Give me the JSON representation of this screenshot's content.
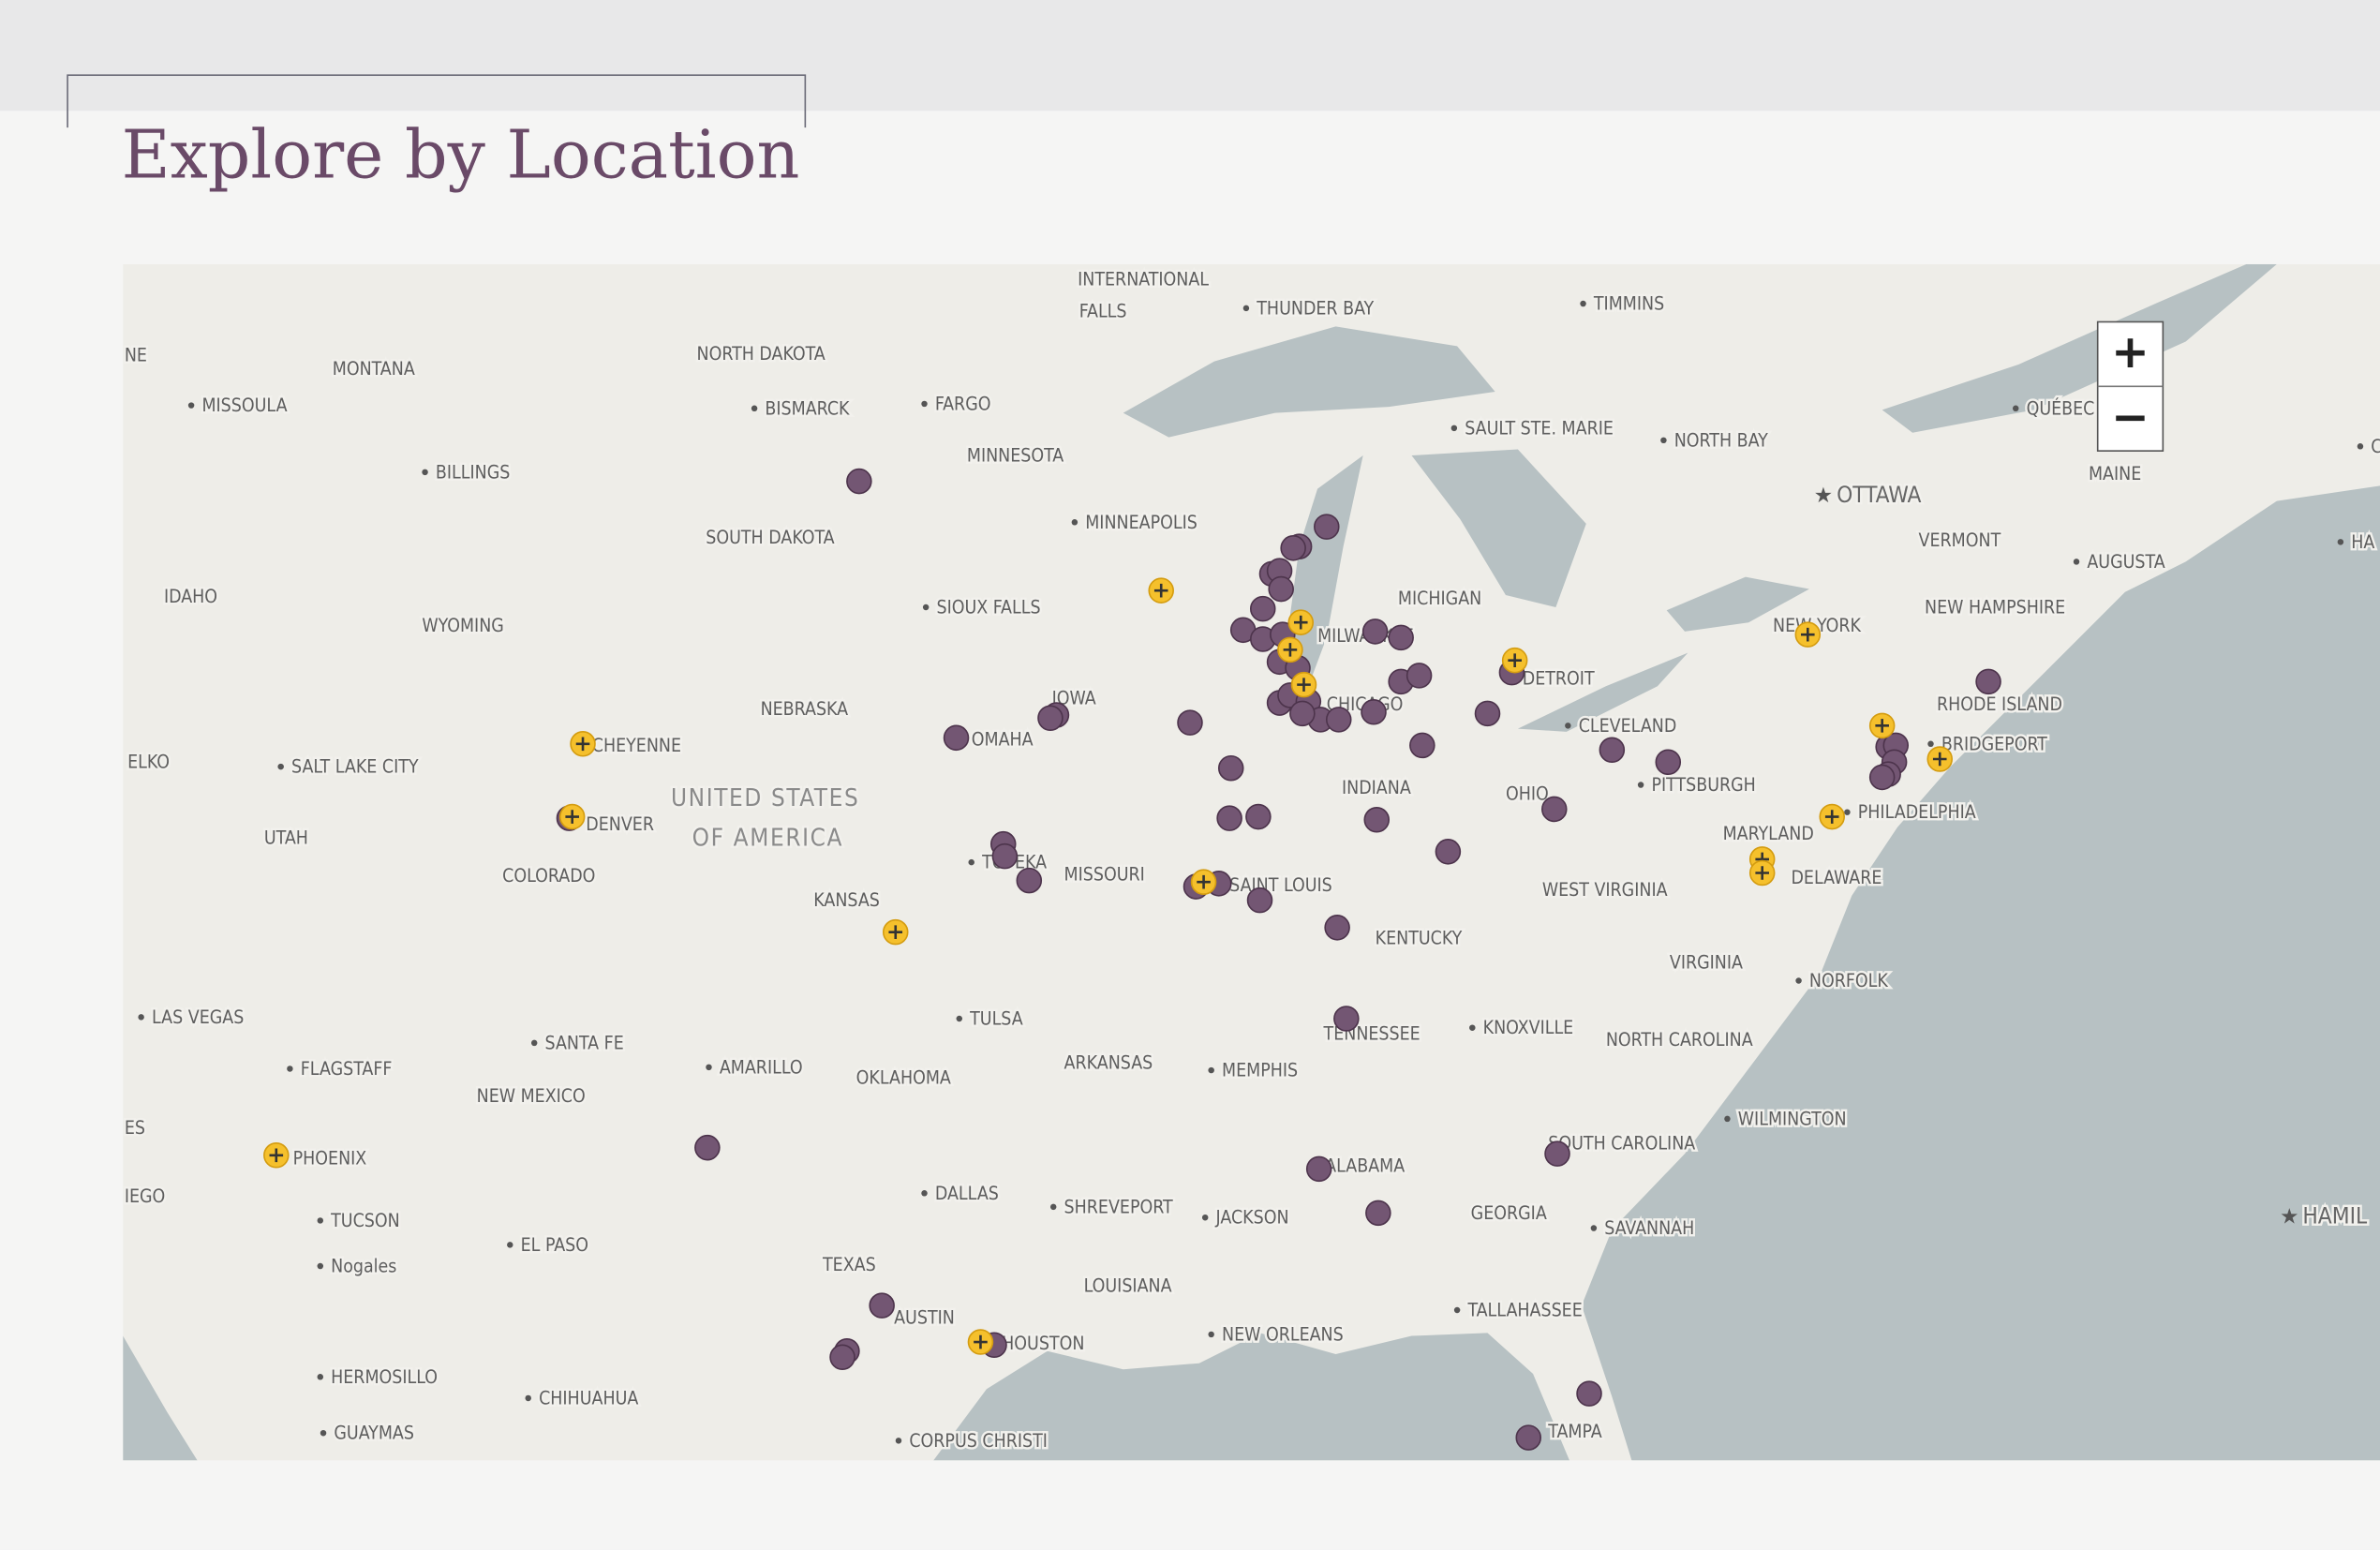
{
  "header": {
    "title": "Explore by Location"
  },
  "map": {
    "zoom_in": "+",
    "zoom_out": "−",
    "labels": [
      "NE",
      "INTERNATIONAL",
      "FALLS",
      "THUNDER BAY",
      "TIMMINS",
      "NORTH DAKOTA",
      "MONTANA",
      "MISSOULA",
      "BISMARCK",
      "FARGO",
      "SAULT STE. MARIE",
      "NORTH BAY",
      "QUÉBEC",
      "C",
      "MINNESOTA",
      "BILLINGS",
      "OTTAWA",
      "MAINE",
      "MINNEAPOLIS",
      "SOUTH DAKOTA",
      "VERMONT",
      "HA",
      "AUGUSTA",
      "IDAHO",
      "MICHIGAN",
      "SIOUX FALLS",
      "WYOMING",
      "NEW HAMPSHIRE",
      "NEW YORK",
      "MILWAUKEE",
      "DETROIT",
      "IOWA",
      "NEBRASKA",
      "CHICAGO",
      "RHODE ISLAND",
      "OMAHA",
      "CLEVELAND",
      "CHEYENNE",
      "BRIDGEPORT",
      "ELKO",
      "SALT LAKE CITY",
      "UNITED STATES",
      "PITTSBURGH",
      "INDIANA",
      "OHIO",
      "PHILADELPHIA",
      "DENVER",
      "OF AMERICA",
      "UTAH",
      "MARYLAND",
      "TOPEKA",
      "MISSOURI",
      "COLORADO",
      "DELAWARE",
      "SAINT LOUIS",
      "WEST VIRGINIA",
      "KANSAS",
      "KENTUCKY",
      "VIRGINIA",
      "NORFOLK",
      "LAS VEGAS",
      "TULSA",
      "KNOXVILLE",
      "TENNESSEE",
      "SANTA FE",
      "NORTH CAROLINA",
      "ARKANSAS",
      "AMARILLO",
      "FLAGSTAFF",
      "MEMPHIS",
      "OKLAHOMA",
      "NEW MEXICO",
      "WILMINGTON",
      "ES",
      "SOUTH CAROLINA",
      "PHOENIX",
      "ALABAMA",
      "IEGO",
      "DALLAS",
      "SHREVEPORT",
      "GEORGIA",
      "JACKSON",
      "HAMIL",
      "TUCSON",
      "SAVANNAH",
      "EL PASO",
      "TEXAS",
      "Nogales",
      "LOUISIANA",
      "TALLAHASSEE",
      "AUSTIN",
      "NEW ORLEANS",
      "HOUSTON",
      "HERMOSILLO",
      "CHIHUAHUA",
      "GUAYMAS",
      "TAMPA",
      "CORPUS CHRISTI"
    ]
  }
}
